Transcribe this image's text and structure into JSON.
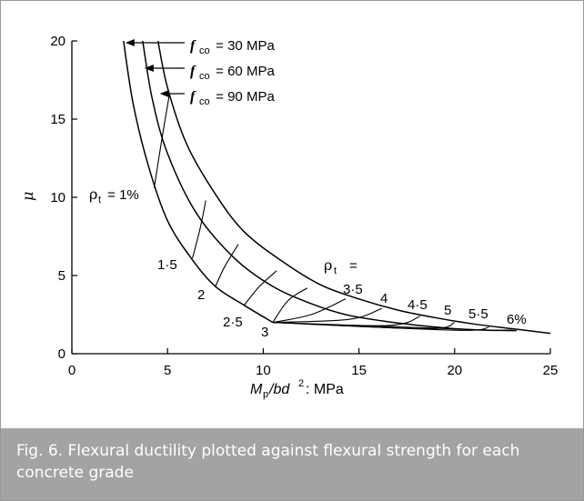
{
  "chart_data": {
    "type": "line",
    "xlabel_main": "M",
    "xlabel_sub": "p",
    "xlabel_rest": "/bd",
    "xlabel_sup": "2",
    "xlabel_units": ": MPa",
    "ylabel": "μ",
    "xlim": [
      0,
      25
    ],
    "ylim": [
      0,
      20
    ],
    "xticks": [
      0,
      5,
      10,
      15,
      20,
      25
    ],
    "yticks": [
      0,
      5,
      10,
      15,
      20
    ],
    "grid": false,
    "series": [
      {
        "name": "30 MPa",
        "x": [
          2.7,
          3.2,
          4.0,
          5.0,
          6.3,
          7.5,
          9.0,
          10.5
        ],
        "y": [
          20.0,
          16.0,
          12.0,
          8.5,
          6.0,
          4.3,
          3.1,
          2.0
        ]
      },
      {
        "name": "60 MPa",
        "x": [
          3.7,
          4.2,
          5.0,
          6.5,
          8.5,
          10.5,
          12.5,
          14.3,
          16.2,
          18.2,
          20.0,
          21.8,
          23.0
        ],
        "y": [
          20.0,
          16.3,
          12.8,
          9.0,
          6.1,
          4.3,
          3.2,
          2.5,
          2.1,
          1.8,
          1.6,
          1.5,
          1.5
        ]
      },
      {
        "name": "90 MPa",
        "x": [
          4.5,
          5.0,
          6.0,
          7.5,
          9.0,
          11.0,
          13.0,
          15.0,
          17.0,
          19.0,
          21.0,
          23.0,
          25.0
        ],
        "y": [
          20.0,
          17.0,
          13.4,
          10.2,
          7.8,
          5.9,
          4.4,
          3.5,
          2.8,
          2.3,
          1.9,
          1.6,
          1.3
        ]
      }
    ],
    "rho_lines": [
      {
        "label": "1%",
        "x": [
          4.3,
          4.7,
          5.1
        ],
        "y": [
          10.6,
          13.7,
          16.6
        ]
      },
      {
        "label": "1·5",
        "x": [
          6.3,
          6.7,
          7.0
        ],
        "y": [
          6.1,
          8.0,
          9.8
        ]
      },
      {
        "label": "2",
        "x": [
          7.5,
          8.0,
          8.7
        ],
        "y": [
          4.3,
          5.6,
          7.0
        ]
      },
      {
        "label": "2·5",
        "x": [
          9.0,
          9.8,
          10.7
        ],
        "y": [
          3.1,
          4.3,
          5.3
        ]
      },
      {
        "label": "3",
        "x": [
          10.5,
          11.3,
          12.3
        ],
        "y": [
          2.0,
          3.4,
          4.2
        ]
      },
      {
        "label": "3·5",
        "x": [
          10.5,
          12.5,
          14.3
        ],
        "y": [
          2.0,
          2.5,
          3.5
        ]
      },
      {
        "label": "4",
        "x": [
          10.5,
          14.5,
          16.2
        ],
        "y": [
          2.0,
          2.2,
          2.9
        ]
      },
      {
        "label": "4·5",
        "x": [
          10.5,
          16.5,
          18.2
        ],
        "y": [
          2.0,
          1.8,
          2.4
        ]
      },
      {
        "label": "5",
        "x": [
          10.5,
          18.5,
          20.0
        ],
        "y": [
          2.0,
          1.6,
          2.0
        ]
      },
      {
        "label": "5·5",
        "x": [
          10.5,
          20.0,
          21.8
        ],
        "y": [
          2.0,
          1.5,
          1.7
        ]
      },
      {
        "label": "6%",
        "x": [
          10.5,
          22.0,
          23.0
        ],
        "y": [
          2.0,
          1.5,
          1.5
        ]
      }
    ],
    "legend": [
      {
        "f": "f",
        "sub": "co",
        "text": " = 30 MPa"
      },
      {
        "f": "f",
        "sub": "co",
        "text": " = 60 MPa"
      },
      {
        "f": "f",
        "sub": "co",
        "text": " = 90 MPa"
      }
    ],
    "rho_symbol": "ρ",
    "rho_sub": "t",
    "rho_eq": "=",
    "rho_first_eq": " = 1%",
    "rho_labels": [
      "1·5",
      "2",
      "2·5",
      "3",
      "3·5",
      "4",
      "4·5",
      "5",
      "5·5",
      "6%"
    ]
  },
  "caption": "Fig. 6. Flexural ductility plotted against flexural strength for each concrete grade"
}
